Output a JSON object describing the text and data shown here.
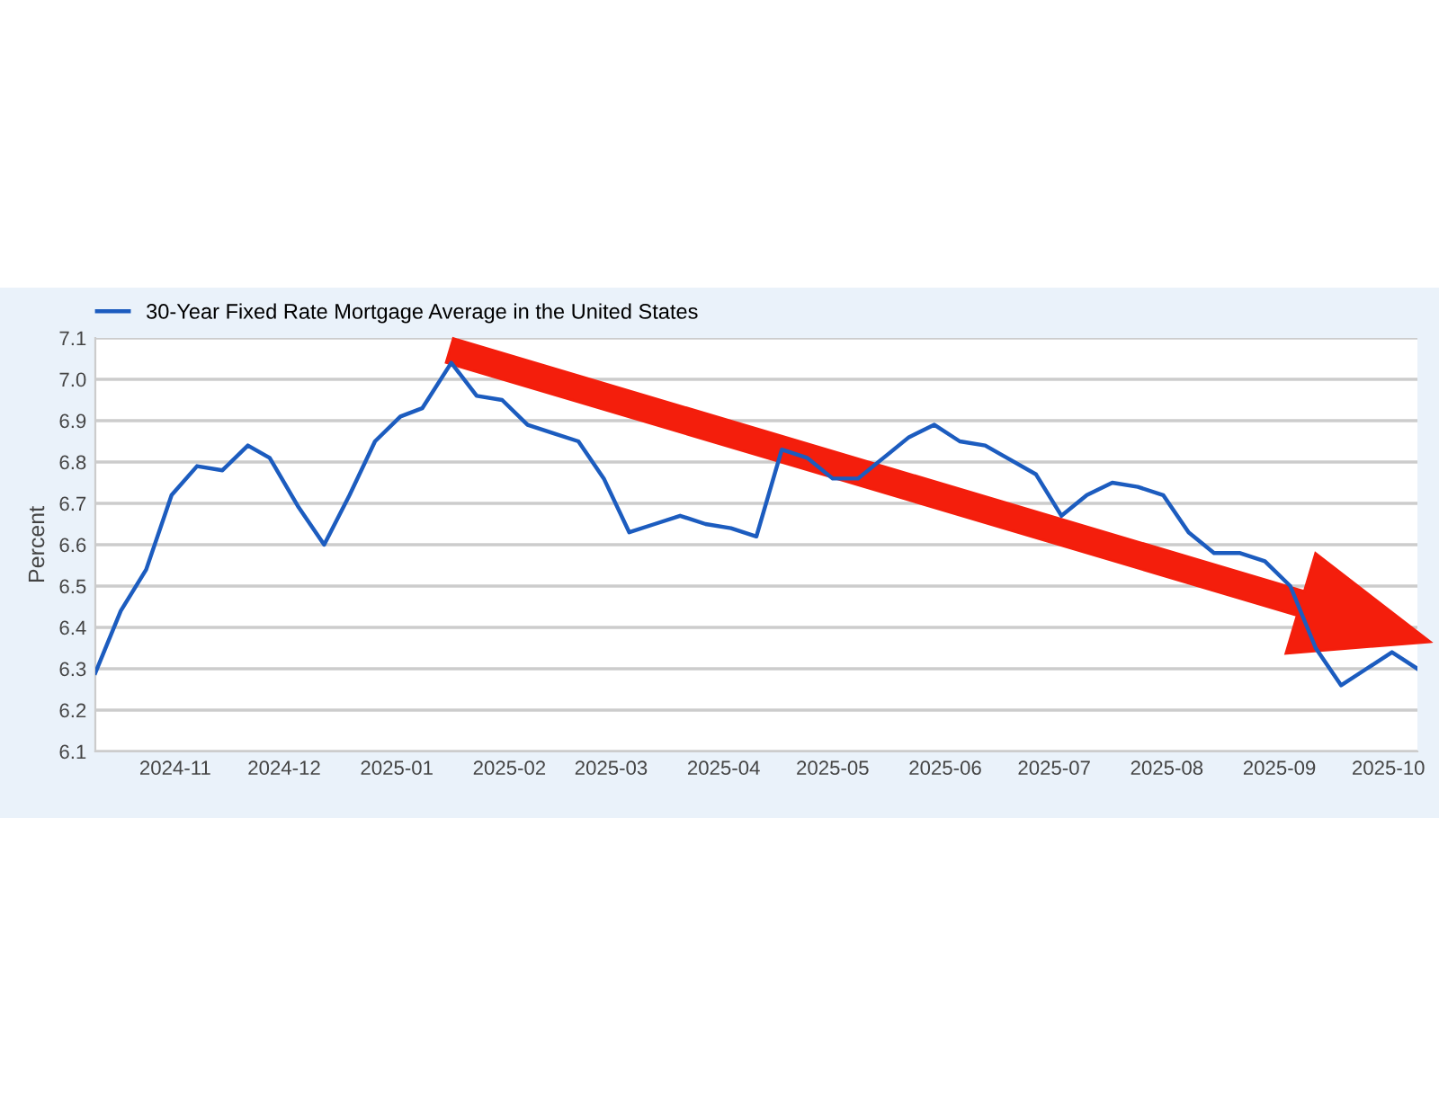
{
  "chart_data": {
    "type": "line",
    "ylabel": "Percent",
    "legend": "top left",
    "grid": "y",
    "marker": "none",
    "line_style": "solid",
    "x": [
      "2024-10-10",
      "2024-10-17",
      "2024-10-24",
      "2024-10-31",
      "2024-11-07",
      "2024-11-14",
      "2024-11-21",
      "2024-11-27",
      "2024-12-05",
      "2024-12-12",
      "2024-12-19",
      "2024-12-26",
      "2025-01-02",
      "2025-01-08",
      "2025-01-16",
      "2025-01-23",
      "2025-01-30",
      "2025-02-06",
      "2025-02-13",
      "2025-02-20",
      "2025-02-27",
      "2025-03-06",
      "2025-03-13",
      "2025-03-20",
      "2025-03-27",
      "2025-04-03",
      "2025-04-10",
      "2025-04-17",
      "2025-04-24",
      "2025-05-01",
      "2025-05-08",
      "2025-05-15",
      "2025-05-22",
      "2025-05-29",
      "2025-06-05",
      "2025-06-12",
      "2025-06-18",
      "2025-06-26",
      "2025-07-03",
      "2025-07-10",
      "2025-07-17",
      "2025-07-24",
      "2025-07-31",
      "2025-08-07",
      "2025-08-14",
      "2025-08-21",
      "2025-08-28",
      "2025-09-04",
      "2025-09-11",
      "2025-09-18",
      "2025-09-25",
      "2025-10-02",
      "2025-10-09"
    ],
    "series": [
      {
        "name": "30-Year Fixed Rate Mortgage Average in the United States",
        "color": "#1c5cbf",
        "values": [
          6.29,
          6.44,
          6.54,
          6.72,
          6.79,
          6.78,
          6.84,
          6.81,
          6.69,
          6.6,
          6.72,
          6.85,
          6.91,
          6.93,
          7.04,
          6.96,
          6.95,
          6.89,
          6.87,
          6.85,
          6.76,
          6.63,
          6.65,
          6.67,
          6.65,
          6.64,
          6.62,
          6.83,
          6.81,
          6.76,
          6.76,
          6.81,
          6.86,
          6.89,
          6.85,
          6.84,
          6.81,
          6.77,
          6.67,
          6.72,
          6.75,
          6.74,
          6.72,
          6.63,
          6.58,
          6.58,
          6.56,
          6.5,
          6.35,
          6.26,
          6.3,
          6.34,
          6.3
        ]
      }
    ],
    "xlim": [
      "2024-10-10",
      "2025-10-09"
    ],
    "xticks": [
      "2024-11",
      "2024-12",
      "2025-01",
      "2025-02",
      "2025-03",
      "2025-04",
      "2025-05",
      "2025-06",
      "2025-07",
      "2025-08",
      "2025-09",
      "2025-10"
    ],
    "ylim": [
      6.1,
      7.1
    ],
    "yticks": [
      6.1,
      6.2,
      6.3,
      6.4,
      6.5,
      6.6,
      6.7,
      6.8,
      6.9,
      {
        "value": 7.0,
        "label": "7.0"
      },
      7.1
    ]
  }
}
